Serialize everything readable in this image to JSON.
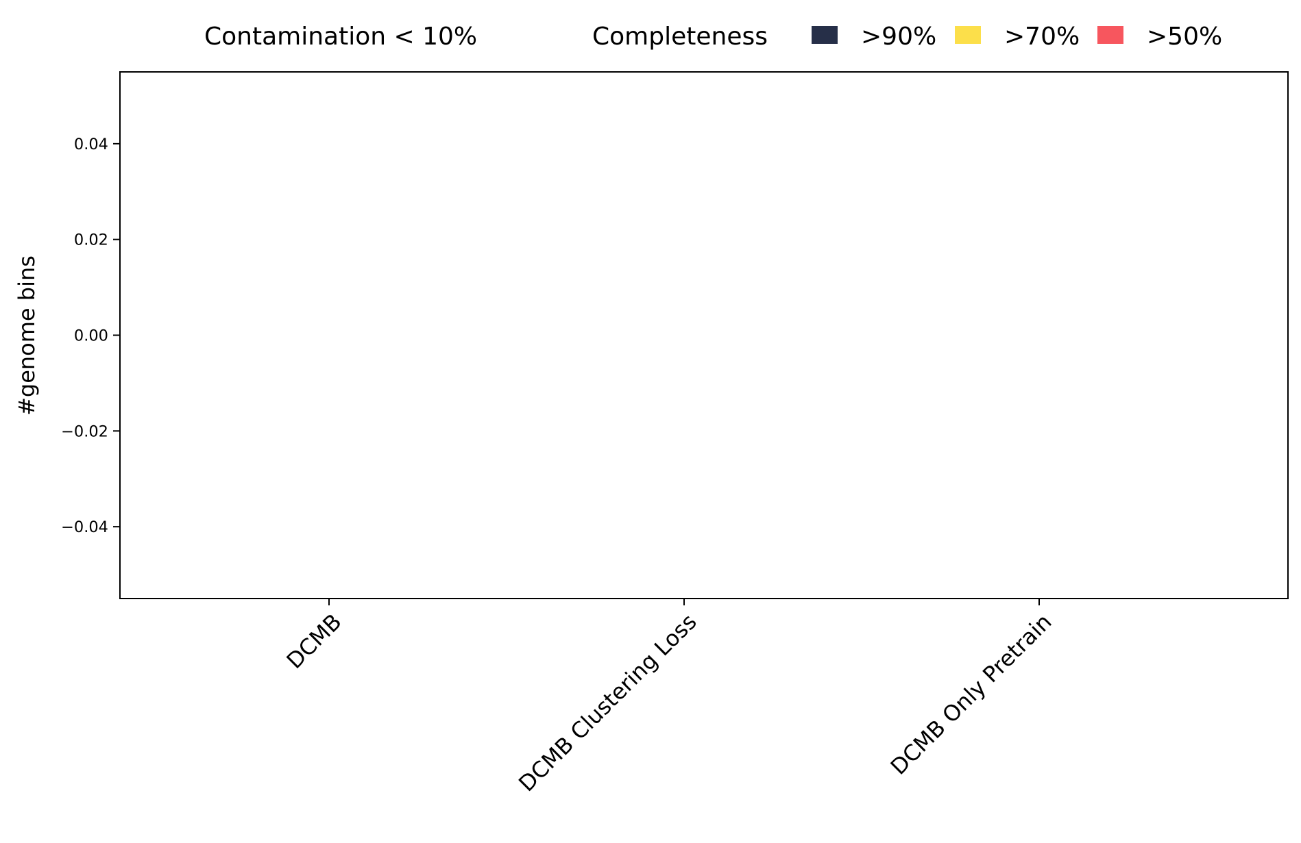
{
  "chart_data": {
    "type": "bar",
    "stacked": true,
    "categories": [
      "DCMB",
      "DCMB Clustering Loss",
      "DCMB Only Pretrain"
    ],
    "series": [
      {
        "name": ">90%",
        "color": "#262f48",
        "values": [
          0,
          0,
          0
        ]
      },
      {
        "name": ">70%",
        "color": "#fcdf4a",
        "values": [
          0,
          0,
          0
        ]
      },
      {
        "name": ">50%",
        "color": "#f7565e",
        "values": [
          0,
          0,
          0
        ]
      }
    ],
    "title": "",
    "xlabel": "",
    "ylabel": "#genome bins",
    "ylim": [
      -0.055,
      0.055
    ],
    "yticks": [
      -0.04,
      -0.02,
      0.0,
      0.02,
      0.04
    ],
    "ytick_labels": [
      "−0.04",
      "−0.02",
      "0.00",
      "0.02",
      "0.04"
    ],
    "grid": false,
    "legend": {
      "placement": "top-center",
      "contamination_label": "Contamination < 10%",
      "completeness_label": "Completeness"
    }
  }
}
